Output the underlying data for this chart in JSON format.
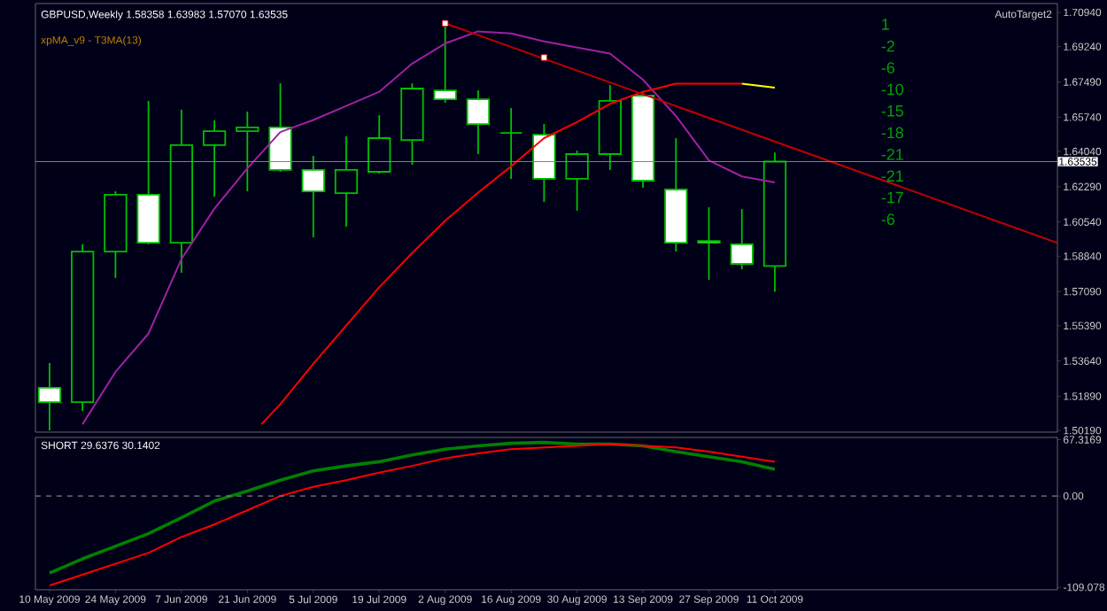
{
  "chart_data": [
    {
      "type": "candlestick",
      "title": "GBPUSD,Weekly 1.58358 1.63983 1.57070 1.63535",
      "subtitle": "xpMA_v9 - T3MA(13)",
      "color": "#00c000",
      "x": [
        "2009-05-10",
        "2009-05-17",
        "2009-05-24",
        "2009-05-31",
        "2009-06-07",
        "2009-06-14",
        "2009-06-21",
        "2009-06-28",
        "2009-07-05",
        "2009-07-12",
        "2009-07-19",
        "2009-07-26",
        "2009-08-02",
        "2009-08-09",
        "2009-08-16",
        "2009-08-23",
        "2009-08-30",
        "2009-09-06",
        "2009-09-13",
        "2009-09-20",
        "2009-09-27",
        "2009-10-04",
        "2009-10-11"
      ],
      "ohlc": [
        [
          1.5231,
          1.5354,
          1.502,
          1.516
        ],
        [
          1.516,
          1.5943,
          1.5116,
          1.5907
        ],
        [
          1.5907,
          1.6206,
          1.5776,
          1.6189
        ],
        [
          1.6189,
          1.6655,
          1.5943,
          1.5951
        ],
        [
          1.5951,
          1.6611,
          1.5802,
          1.6435
        ],
        [
          1.6435,
          1.6558,
          1.618,
          1.6505
        ],
        [
          1.6505,
          1.6602,
          1.6206,
          1.6523
        ],
        [
          1.6523,
          1.6742,
          1.6303,
          1.6312
        ],
        [
          1.6312,
          1.6382,
          1.5978,
          1.6206
        ],
        [
          1.6197,
          1.6479,
          1.603,
          1.6312
        ],
        [
          1.6303,
          1.6584,
          1.6294,
          1.647
        ],
        [
          1.6461,
          1.6742,
          1.6338,
          1.6716
        ],
        [
          1.6707,
          1.7041,
          1.6646,
          1.6663
        ],
        [
          1.6663,
          1.6707,
          1.6391,
          1.654
        ],
        [
          1.6496,
          1.6619,
          1.6268,
          1.6496
        ],
        [
          1.6487,
          1.654,
          1.6153,
          1.6268
        ],
        [
          1.6268,
          1.6408,
          1.611,
          1.6391
        ],
        [
          1.6391,
          1.6734,
          1.6312,
          1.6655
        ],
        [
          1.6681,
          1.6698,
          1.6224,
          1.6259
        ],
        [
          1.6215,
          1.647,
          1.5907,
          1.5951
        ],
        [
          1.596,
          1.6127,
          1.5767,
          1.5951
        ],
        [
          1.5943,
          1.6118,
          1.5819,
          1.5846
        ],
        [
          1.58358,
          1.63983,
          1.5707,
          1.63535
        ]
      ],
      "series": [
        {
          "type": "line",
          "color": "#a020a0",
          "values": [
            null,
            1.505,
            1.531,
            1.55,
            1.587,
            1.612,
            1.632,
            1.65,
            1.656,
            1.663,
            1.67,
            1.684,
            1.694,
            1.7,
            1.699,
            1.695,
            1.692,
            1.689,
            1.676,
            1.658,
            1.636,
            1.628,
            1.625
          ]
        },
        {
          "type": "line",
          "color": "#ff0000",
          "x": [
            "2009-06-24",
            "2009-06-28",
            "2009-07-05",
            "2009-07-12",
            "2009-07-19",
            "2009-07-26",
            "2009-08-02",
            "2009-08-09",
            "2009-08-16",
            "2009-08-23",
            "2009-08-30",
            "2009-09-06",
            "2009-09-13",
            "2009-09-20",
            "2009-09-27",
            "2009-10-04"
          ],
          "values": [
            1.505,
            1.515,
            1.535,
            1.554,
            1.573,
            1.59,
            1.606,
            1.62,
            1.633,
            1.647,
            1.655,
            1.664,
            1.67,
            1.674,
            1.674,
            1.674
          ]
        },
        {
          "type": "line",
          "color": "#ffff00",
          "x": [
            "2009-10-04",
            "2009-10-11"
          ],
          "values": [
            1.674,
            1.672
          ]
        },
        {
          "type": "line",
          "color": "#c00000",
          "x": [
            "2009-08-02",
            "2009-12-10"
          ],
          "values": [
            1.704,
            1.595
          ]
        },
        {
          "type": "scatter",
          "color": "#ff0000",
          "marker": "square",
          "x": [
            "2009-08-02",
            "2009-08-23"
          ],
          "values": [
            1.704,
            1.687
          ]
        }
      ],
      "xlim": [
        "2009-05-07",
        "2009-12-10"
      ],
      "ylim": [
        1.5011,
        1.7138
      ],
      "yticks": [
        {
          "value": 1.7094,
          "label": "1.70940"
        },
        {
          "value": 1.6924,
          "label": "1.69240"
        },
        {
          "value": 1.6749,
          "label": "1.67490"
        },
        {
          "value": 1.6574,
          "label": "1.65740"
        },
        {
          "value": 1.6404,
          "label": "1.64040"
        },
        {
          "value": 1.6229,
          "label": "1.62290"
        },
        {
          "value": 1.6054,
          "label": "1.60540"
        },
        {
          "value": 1.5884,
          "label": "1.58840"
        },
        {
          "value": 1.5709,
          "label": "1.57090"
        },
        {
          "value": 1.5539,
          "label": "1.55390"
        },
        {
          "value": 1.5364,
          "label": "1.53640"
        },
        {
          "value": 1.5189,
          "label": "1.51890"
        },
        {
          "value": 1.5019,
          "label": "1.50190"
        }
      ],
      "ref_lines": [
        {
          "axis": "y",
          "value": 1.63535,
          "label": "1.63535",
          "color": "#808080"
        }
      ],
      "annotations": [
        "AutoTarget2",
        "1",
        "-2",
        "-6",
        "-10",
        "-15",
        "-18",
        "-21",
        "-21",
        "-17",
        "-6"
      ],
      "tick_labels": "y"
    },
    {
      "type": "line",
      "x": [
        "2009-05-10",
        "2009-05-17",
        "2009-05-24",
        "2009-05-31",
        "2009-06-07",
        "2009-06-14",
        "2009-06-21",
        "2009-06-28",
        "2009-07-05",
        "2009-07-12",
        "2009-07-19",
        "2009-07-26",
        "2009-08-02",
        "2009-08-09",
        "2009-08-16",
        "2009-08-23",
        "2009-08-30",
        "2009-09-06",
        "2009-09-13",
        "2009-09-20",
        "2009-09-27",
        "2009-10-04",
        "2009-10-11"
      ],
      "series": [
        {
          "color": "#008000",
          "values": [
            -92,
            -75,
            -60,
            -45,
            -26,
            -6,
            6,
            19,
            30,
            36,
            41,
            49,
            56,
            60,
            63,
            64,
            62,
            62,
            60,
            53,
            47,
            41,
            32
          ]
        },
        {
          "color": "#ff0000",
          "values": [
            -107,
            -94,
            -81,
            -68,
            -49,
            -34,
            -17,
            0,
            11,
            19,
            28,
            36,
            45,
            51,
            56,
            58,
            60,
            62,
            60,
            58,
            53,
            47,
            41
          ]
        }
      ],
      "xlim": [
        "2009-05-07",
        "2009-12-10"
      ],
      "ylim": [
        -112,
        70
      ],
      "xticks": [
        {
          "value": "2009-05-10",
          "label": "10 May 2009"
        },
        {
          "value": "2009-05-24",
          "label": "24 May 2009"
        },
        {
          "value": "2009-06-07",
          "label": "7 Jun 2009"
        },
        {
          "value": "2009-06-21",
          "label": "21 Jun 2009"
        },
        {
          "value": "2009-07-05",
          "label": "5 Jul 2009"
        },
        {
          "value": "2009-07-19",
          "label": "19 Jul 2009"
        },
        {
          "value": "2009-08-02",
          "label": "2 Aug 2009"
        },
        {
          "value": "2009-08-16",
          "label": "16 Aug 2009"
        },
        {
          "value": "2009-08-30",
          "label": "30 Aug 2009"
        },
        {
          "value": "2009-09-13",
          "label": "13 Sep 2009"
        },
        {
          "value": "2009-09-27",
          "label": "27 Sep 2009"
        },
        {
          "value": "2009-10-11",
          "label": "11 Oct 2009"
        }
      ],
      "yticks": [
        {
          "value": 67.3169,
          "label": "67.3169"
        },
        {
          "value": 0,
          "label": "0.00"
        },
        {
          "value": -109.078,
          "label": "-109.078"
        }
      ],
      "ref_lines": [
        {
          "axis": "y",
          "value": 0,
          "color": "#808080",
          "line_style": "dashed"
        }
      ],
      "annotations": [
        "SHORT 29.6376 30.1402"
      ]
    }
  ]
}
